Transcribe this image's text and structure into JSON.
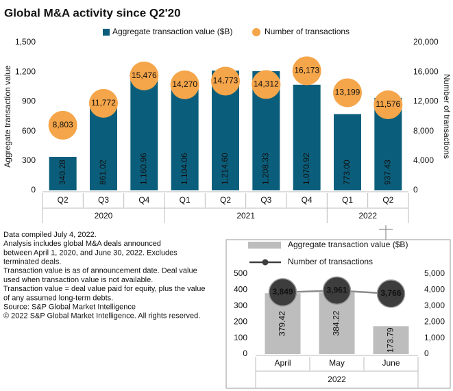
{
  "chart_data": [
    {
      "type": "bar",
      "title": "Global M&A activity since Q2'20",
      "categories": [
        "Q2",
        "Q3",
        "Q4",
        "Q1",
        "Q2",
        "Q3",
        "Q4",
        "Q1",
        "Q2"
      ],
      "groups": [
        {
          "name": "2020",
          "size": 3
        },
        {
          "name": "2021",
          "size": 4
        },
        {
          "name": "2022",
          "size": 2
        }
      ],
      "series": [
        {
          "name": "Aggregate transaction value ($B)",
          "color": "#0b5e7b",
          "style": "bar",
          "values": [
            340.28,
            861.02,
            1160.96,
            1104.06,
            1214.6,
            1208.33,
            1070.92,
            773.0,
            937.43
          ],
          "value_labels": [
            "340.28",
            "861.02",
            "1,160.96",
            "1,104.06",
            "1,214.60",
            "1,208.33",
            "1,070.92",
            "773.00",
            "937.43"
          ]
        },
        {
          "name": "Number of transactions",
          "color": "#f5a54a",
          "style": "bubble",
          "axis": "y2",
          "values": [
            8803,
            11772,
            15476,
            14270,
            14773,
            14312,
            16173,
            13199,
            11576
          ],
          "value_labels": [
            "8,803",
            "11,772",
            "15,476",
            "14,270",
            "14,773",
            "14,312",
            "16,173",
            "13,199",
            "11,576"
          ]
        }
      ],
      "ylabel": "Aggregate transaction value",
      "y2label": "Number of transactions",
      "ylim": [
        0,
        1500
      ],
      "yticks": [
        0,
        300,
        600,
        900,
        {
          "value": 1200,
          "label": "1,200"
        },
        {
          "value": 1500,
          "label": "1,500"
        }
      ],
      "y2lim": [
        0,
        20000
      ],
      "y2ticks": [
        0,
        {
          "value": 4000,
          "label": "4,000"
        },
        {
          "value": 8000,
          "label": "8,000"
        },
        {
          "value": 12000,
          "label": "12,000"
        },
        {
          "value": 16000,
          "label": "16,000"
        },
        {
          "value": 20000,
          "label": "20,000"
        }
      ],
      "notes": [
        "Data compiled July 4, 2022.",
        "Analysis includes global M&A deals announced",
        "between April 1, 2020, and June 30, 2022. Excludes",
        "terminated deals.",
        "Transaction value is as of announcement date. Deal value",
        "used when transaction value is not available.",
        "Transaction value = deal value paid for equity, plus the value",
        "of any assumed long-term debts.",
        "Source: S&P Global Market Intelligence",
        "© 2022 S&P Global Market Intelligence. All rights reserved."
      ]
    },
    {
      "type": "bar",
      "categories": [
        "April",
        "May",
        "June"
      ],
      "groups": [
        {
          "name": "2022",
          "size": 3
        }
      ],
      "series": [
        {
          "name": "Aggregate transaction value ($B)",
          "color": "#bdbdbd",
          "style": "bar",
          "values": [
            379.42,
            384.22,
            173.79
          ]
        },
        {
          "name": "Number of transactions",
          "color": "#3d3d3d",
          "style": "line",
          "axis": "y2",
          "values": [
            3849,
            3961,
            3766
          ],
          "value_labels": [
            "3,849",
            "3,961",
            "3,766"
          ]
        }
      ],
      "ylim": [
        0,
        500
      ],
      "yticks": [
        0,
        100,
        200,
        300,
        400,
        500
      ],
      "y2lim": [
        0,
        5000
      ],
      "y2ticks": [
        0,
        {
          "value": 1000,
          "label": "1,000"
        },
        {
          "value": 2000,
          "label": "2,000"
        },
        {
          "value": 3000,
          "label": "3,000"
        },
        {
          "value": 4000,
          "label": "4,000"
        },
        {
          "value": 5000,
          "label": "5,000"
        }
      ]
    }
  ]
}
